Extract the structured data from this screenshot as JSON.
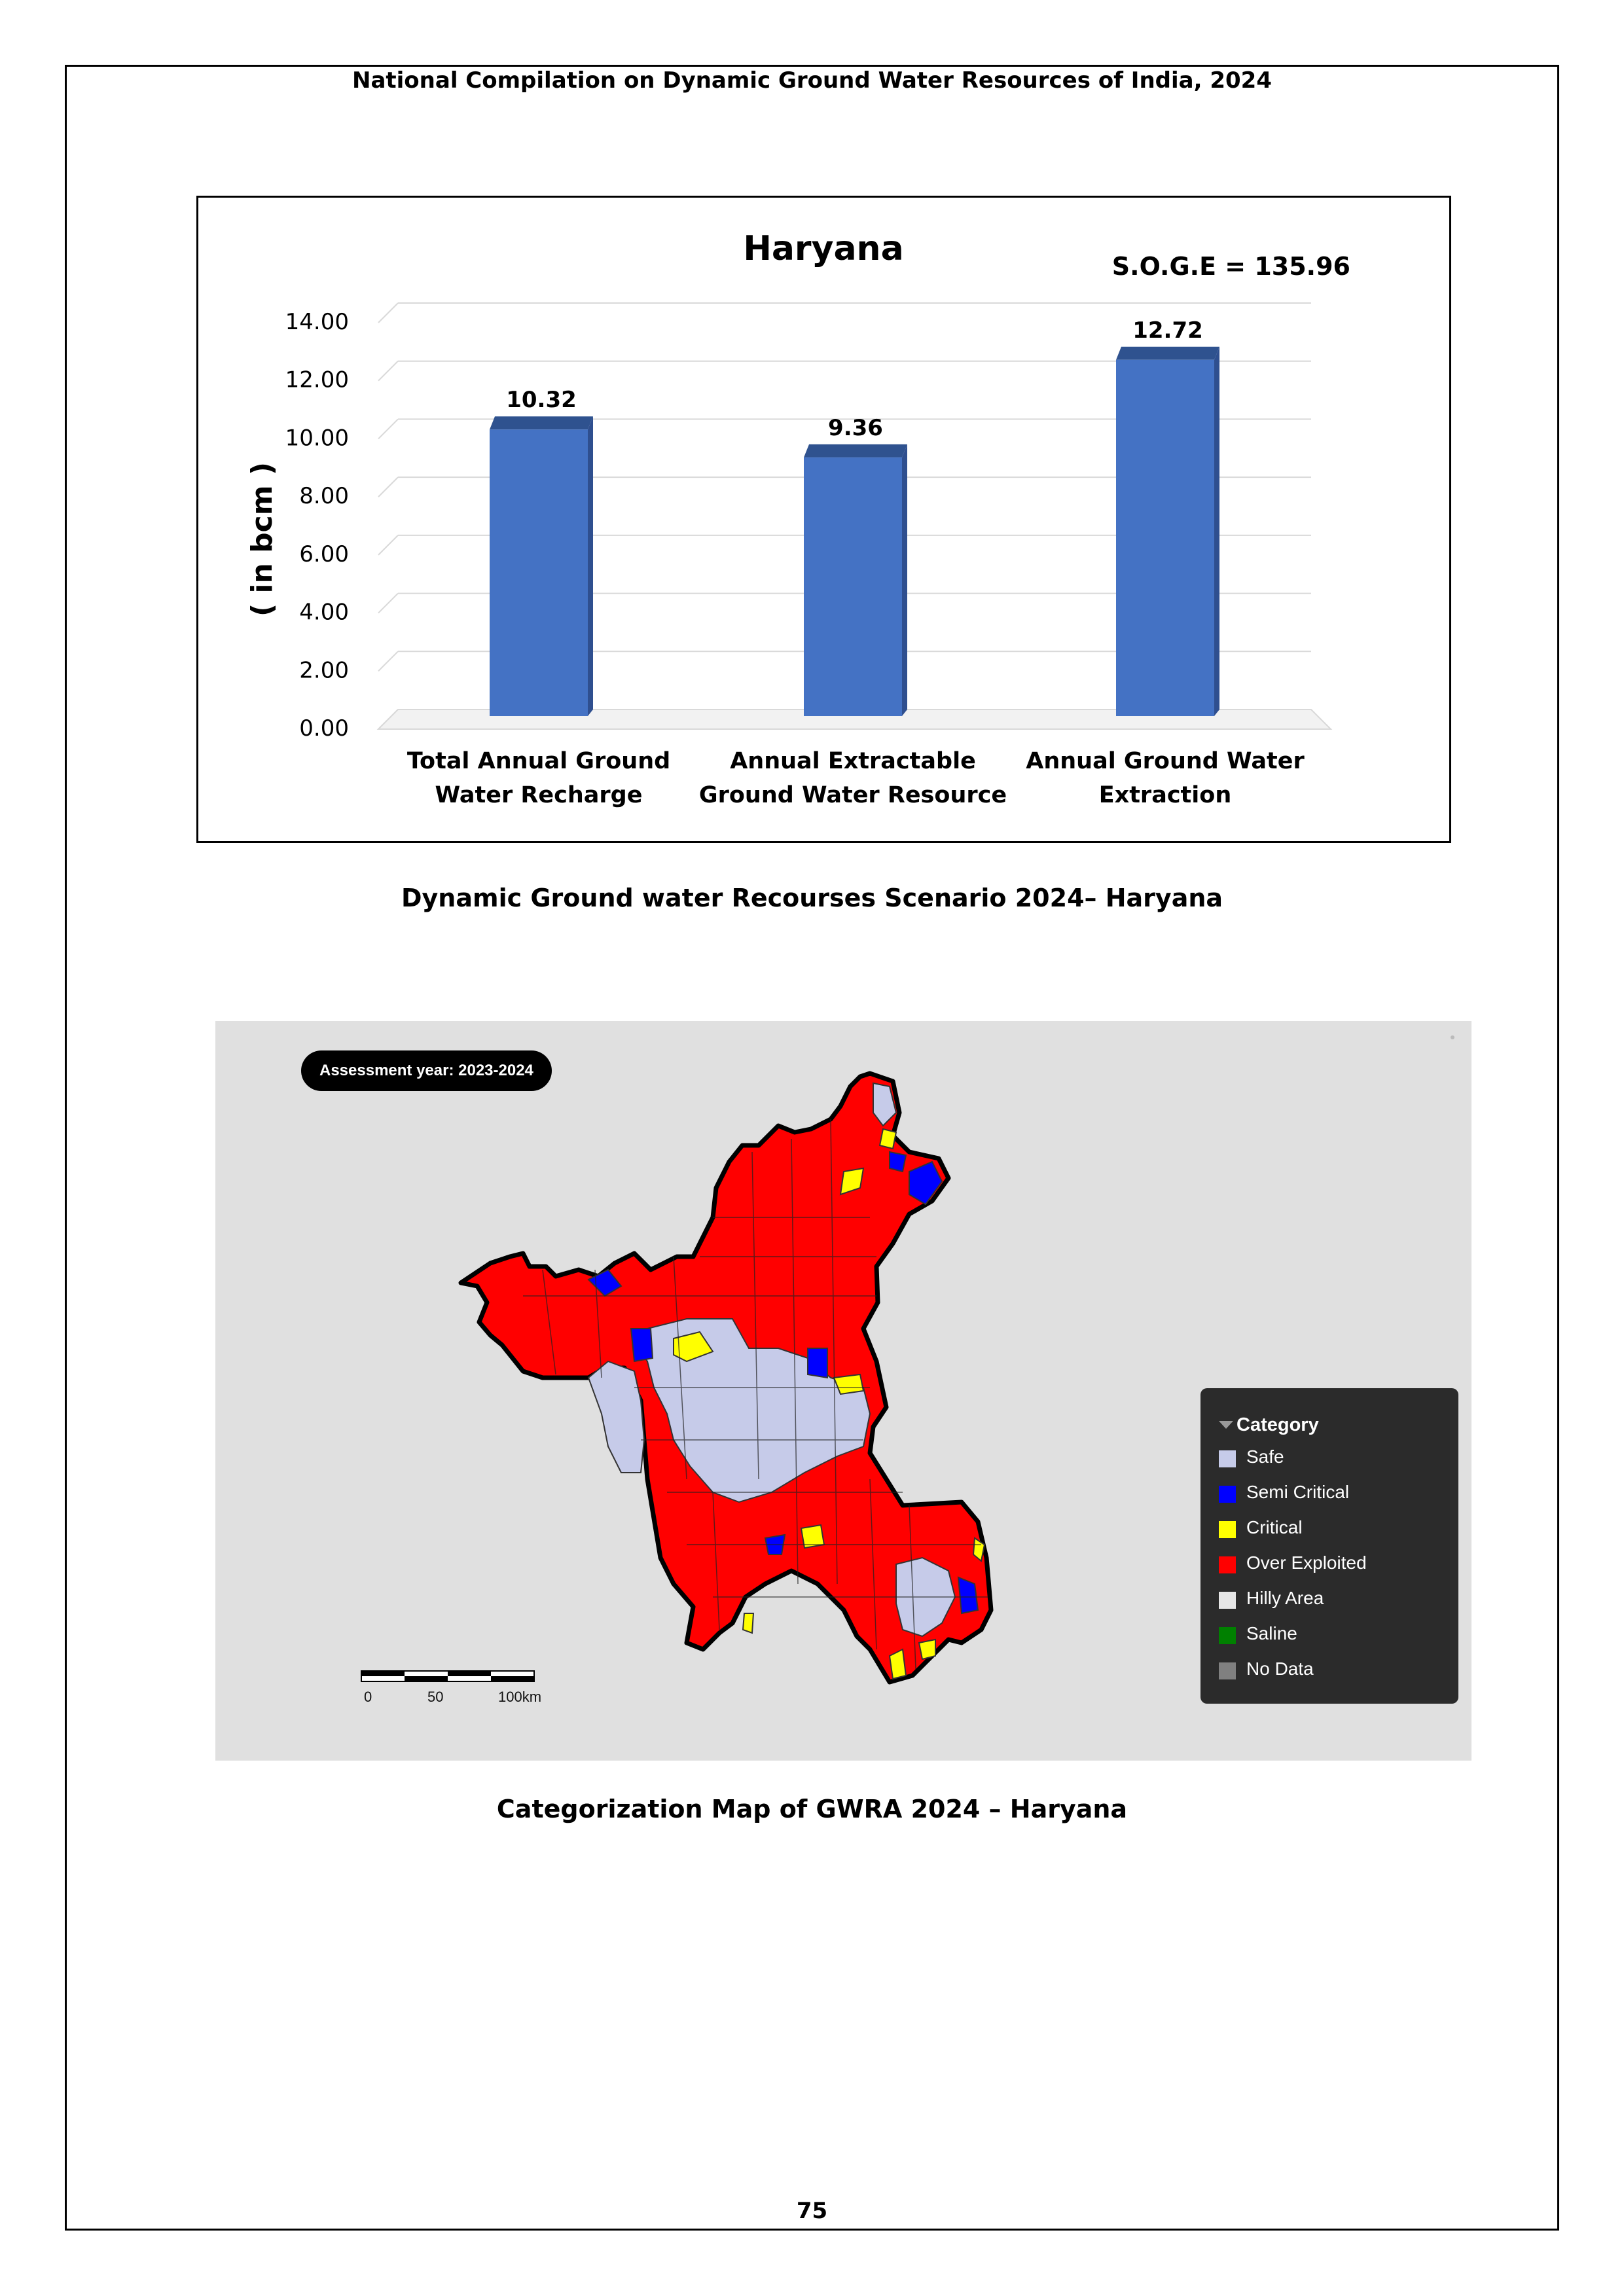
{
  "header": "National Compilation on Dynamic Ground Water Resources of India, 2024",
  "chart_data": {
    "type": "bar",
    "title": "Haryana",
    "annotation": "S.O.G.E = 135.96",
    "ylabel": "( in bcm )",
    "xlabel": "",
    "ylim": [
      0,
      14
    ],
    "yticks": [
      "0.00",
      "2.00",
      "4.00",
      "6.00",
      "8.00",
      "10.00",
      "12.00",
      "14.00"
    ],
    "categories": [
      [
        "Total Annual  Ground",
        "Water Recharge"
      ],
      [
        "Annual Extractable",
        "Ground Water Resource"
      ],
      [
        "Annual Ground Water",
        "Extraction"
      ]
    ],
    "values": [
      10.32,
      9.36,
      12.72
    ],
    "value_labels": [
      "10.32",
      "9.36",
      "12.72"
    ],
    "bar_color": "#4472c4",
    "grid": true
  },
  "chart_caption": "Dynamic Ground water Recourses Scenario 2024– Haryana",
  "map": {
    "assessment_label": "Assessment year: 2023-2024",
    "legend_title": "Category",
    "legend": [
      {
        "label": "Safe",
        "color": "#c6cbe9"
      },
      {
        "label": "Semi Critical",
        "color": "#0000ff"
      },
      {
        "label": "Critical",
        "color": "#ffff00"
      },
      {
        "label": "Over Exploited",
        "color": "#ff0000"
      },
      {
        "label": "Hilly Area",
        "color": "#e6e6e6"
      },
      {
        "label": "Saline",
        "color": "#008000"
      },
      {
        "label": "No Data",
        "color": "#808080"
      }
    ],
    "scale_labels": [
      "0",
      "50",
      "100km"
    ]
  },
  "map_caption": "Categorization Map of GWRA 2024 – Haryana",
  "page_number": "75"
}
